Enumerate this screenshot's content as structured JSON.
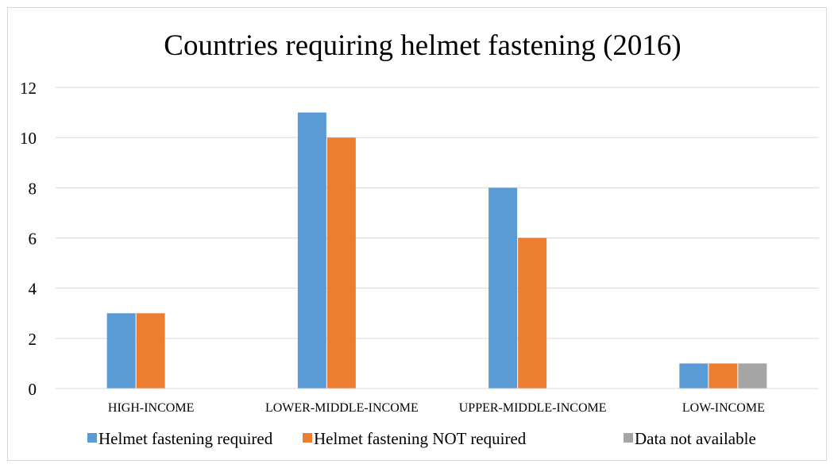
{
  "chart_data": {
    "type": "bar",
    "title": "Countries requiring helmet fastening (2016)",
    "categories": [
      "HIGH-INCOME",
      "LOWER-MIDDLE-INCOME",
      "UPPER-MIDDLE-INCOME",
      "LOW-INCOME"
    ],
    "series": [
      {
        "name": "Helmet fastening required",
        "color": "#5b9bd5",
        "values": [
          3,
          11,
          8,
          1
        ]
      },
      {
        "name": "Helmet fastening NOT required",
        "color": "#ed7d31",
        "values": [
          3,
          10,
          6,
          1
        ]
      },
      {
        "name": "Data not available",
        "color": "#a5a5a5",
        "values": [
          0,
          0,
          0,
          1
        ]
      }
    ],
    "ylim": [
      0,
      12
    ],
    "yticks": [
      0,
      2,
      4,
      6,
      8,
      10,
      12
    ],
    "grid": true,
    "legend_position": "bottom",
    "gridline_color": "#d9d9d9"
  }
}
